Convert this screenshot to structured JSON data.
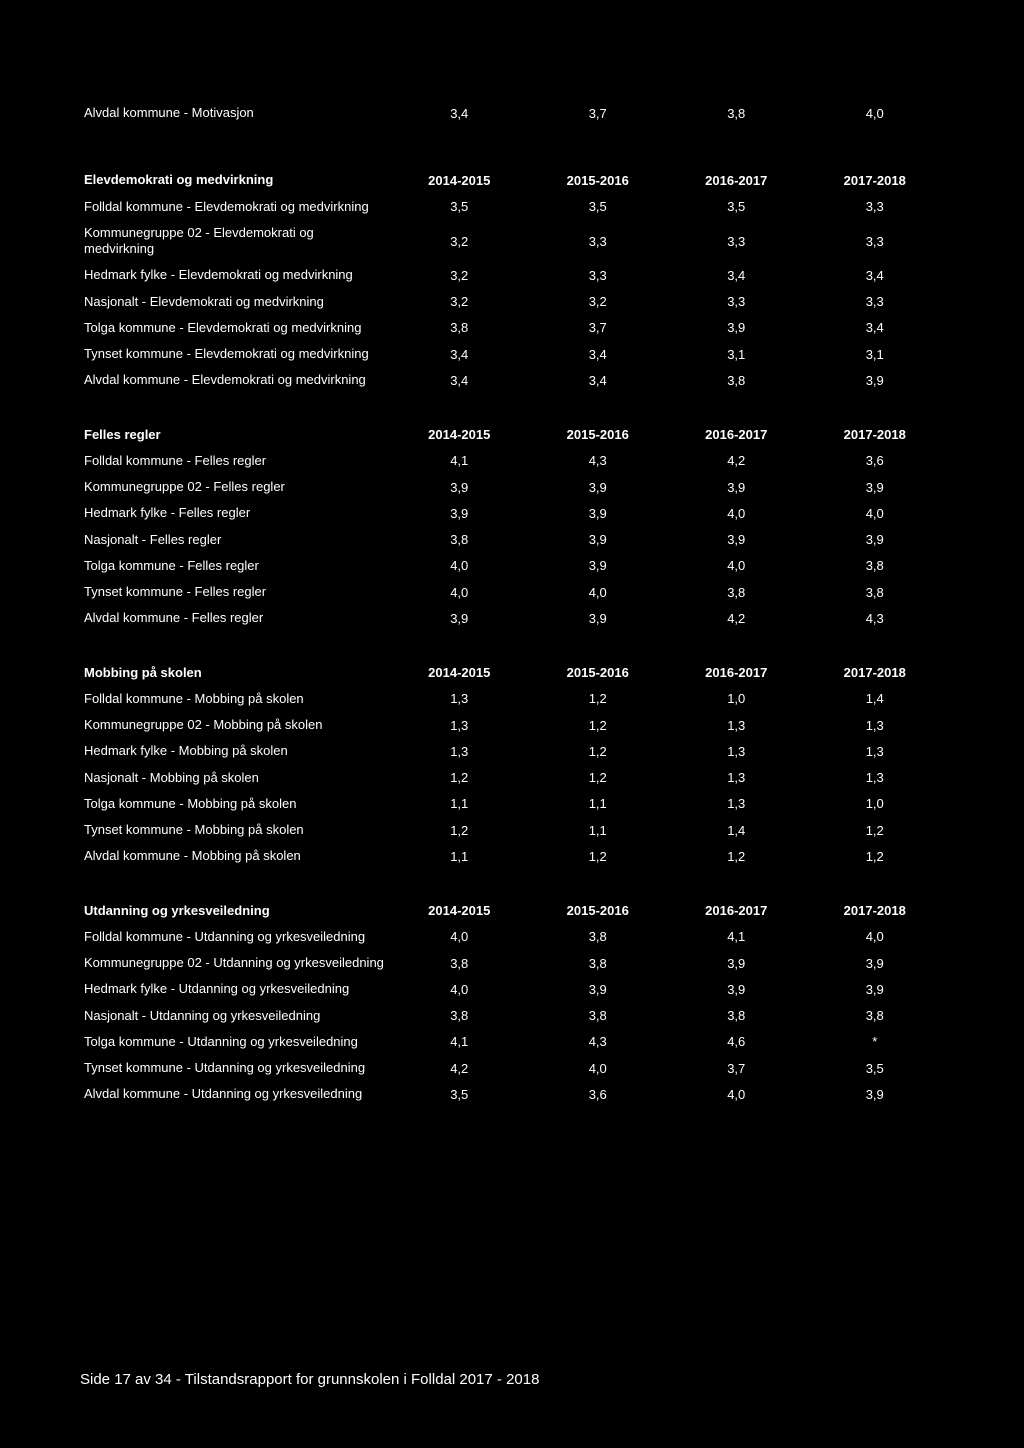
{
  "page": {
    "background_color": "#000000",
    "text_color": "#ffffff",
    "font_family": "Verdana, Geneva, sans-serif",
    "label_fontsize": 13,
    "header_fontweight": "bold",
    "footer_fontsize": 15
  },
  "intro_row": {
    "label": "Alvdal kommune - Motivasjon",
    "values": [
      "3,4",
      "3,7",
      "3,8",
      "4,0"
    ]
  },
  "sections": [
    {
      "title": "Elevdemokrati og medvirkning",
      "columns": [
        "2014-2015",
        "2015-2016",
        "2016-2017",
        "2017-2018"
      ],
      "rows": [
        {
          "label": "Folldal kommune - Elevdemokrati og medvirkning",
          "values": [
            "3,5",
            "3,5",
            "3,5",
            "3,3"
          ]
        },
        {
          "label": "Kommunegruppe 02 - Elevdemokrati og medvirkning",
          "values": [
            "3,2",
            "3,3",
            "3,3",
            "3,3"
          ]
        },
        {
          "label": "Hedmark fylke - Elevdemokrati og medvirkning",
          "values": [
            "3,2",
            "3,3",
            "3,4",
            "3,4"
          ]
        },
        {
          "label": "Nasjonalt - Elevdemokrati og medvirkning",
          "values": [
            "3,2",
            "3,2",
            "3,3",
            "3,3"
          ]
        },
        {
          "label": "Tolga kommune - Elevdemokrati og medvirkning",
          "values": [
            "3,8",
            "3,7",
            "3,9",
            "3,4"
          ]
        },
        {
          "label": "Tynset kommune - Elevdemokrati og medvirkning",
          "values": [
            "3,4",
            "3,4",
            "3,1",
            "3,1"
          ]
        },
        {
          "label": "Alvdal kommune - Elevdemokrati og medvirkning",
          "values": [
            "3,4",
            "3,4",
            "3,8",
            "3,9"
          ]
        }
      ]
    },
    {
      "title": "Felles regler",
      "columns": [
        "2014-2015",
        "2015-2016",
        "2016-2017",
        "2017-2018"
      ],
      "rows": [
        {
          "label": "Folldal kommune - Felles regler",
          "values": [
            "4,1",
            "4,3",
            "4,2",
            "3,6"
          ]
        },
        {
          "label": "Kommunegruppe 02 - Felles regler",
          "values": [
            "3,9",
            "3,9",
            "3,9",
            "3,9"
          ]
        },
        {
          "label": "Hedmark fylke - Felles regler",
          "values": [
            "3,9",
            "3,9",
            "4,0",
            "4,0"
          ]
        },
        {
          "label": "Nasjonalt - Felles regler",
          "values": [
            "3,8",
            "3,9",
            "3,9",
            "3,9"
          ]
        },
        {
          "label": "Tolga kommune - Felles regler",
          "values": [
            "4,0",
            "3,9",
            "4,0",
            "3,8"
          ]
        },
        {
          "label": "Tynset kommune - Felles regler",
          "values": [
            "4,0",
            "4,0",
            "3,8",
            "3,8"
          ]
        },
        {
          "label": "Alvdal kommune - Felles regler",
          "values": [
            "3,9",
            "3,9",
            "4,2",
            "4,3"
          ]
        }
      ]
    },
    {
      "title": "Mobbing på skolen",
      "columns": [
        "2014-2015",
        "2015-2016",
        "2016-2017",
        "2017-2018"
      ],
      "rows": [
        {
          "label": "Folldal kommune - Mobbing på skolen",
          "values": [
            "1,3",
            "1,2",
            "1,0",
            "1,4"
          ]
        },
        {
          "label": "Kommunegruppe 02 - Mobbing på skolen",
          "values": [
            "1,3",
            "1,2",
            "1,3",
            "1,3"
          ]
        },
        {
          "label": "Hedmark fylke - Mobbing på skolen",
          "values": [
            "1,3",
            "1,2",
            "1,3",
            "1,3"
          ]
        },
        {
          "label": "Nasjonalt - Mobbing på skolen",
          "values": [
            "1,2",
            "1,2",
            "1,3",
            "1,3"
          ]
        },
        {
          "label": "Tolga kommune - Mobbing på skolen",
          "values": [
            "1,1",
            "1,1",
            "1,3",
            "1,0"
          ]
        },
        {
          "label": "Tynset kommune - Mobbing på skolen",
          "values": [
            "1,2",
            "1,1",
            "1,4",
            "1,2"
          ]
        },
        {
          "label": "Alvdal kommune - Mobbing på skolen",
          "values": [
            "1,1",
            "1,2",
            "1,2",
            "1,2"
          ]
        }
      ]
    },
    {
      "title": "Utdanning og yrkesveiledning",
      "columns": [
        "2014-2015",
        "2015-2016",
        "2016-2017",
        "2017-2018"
      ],
      "rows": [
        {
          "label": "Folldal kommune - Utdanning og yrkesveiledning",
          "values": [
            "4,0",
            "3,8",
            "4,1",
            "4,0"
          ]
        },
        {
          "label": "Kommunegruppe 02 - Utdanning og yrkesveiledning",
          "values": [
            "3,8",
            "3,8",
            "3,9",
            "3,9"
          ]
        },
        {
          "label": "Hedmark fylke - Utdanning og yrkesveiledning",
          "values": [
            "4,0",
            "3,9",
            "3,9",
            "3,9"
          ]
        },
        {
          "label": "Nasjonalt - Utdanning og yrkesveiledning",
          "values": [
            "3,8",
            "3,8",
            "3,8",
            "3,8"
          ]
        },
        {
          "label": "Tolga kommune - Utdanning og yrkesveiledning",
          "values": [
            "4,1",
            "4,3",
            "4,6",
            "*"
          ]
        },
        {
          "label": "Tynset kommune - Utdanning og yrkesveiledning",
          "values": [
            "4,2",
            "4,0",
            "3,7",
            "3,5"
          ]
        },
        {
          "label": "Alvdal kommune - Utdanning og yrkesveiledning",
          "values": [
            "3,5",
            "3,6",
            "4,0",
            "3,9"
          ]
        }
      ]
    }
  ],
  "footer": "Side 17 av 34 - Tilstandsrapport for grunnskolen i Folldal 2017 - 2018"
}
